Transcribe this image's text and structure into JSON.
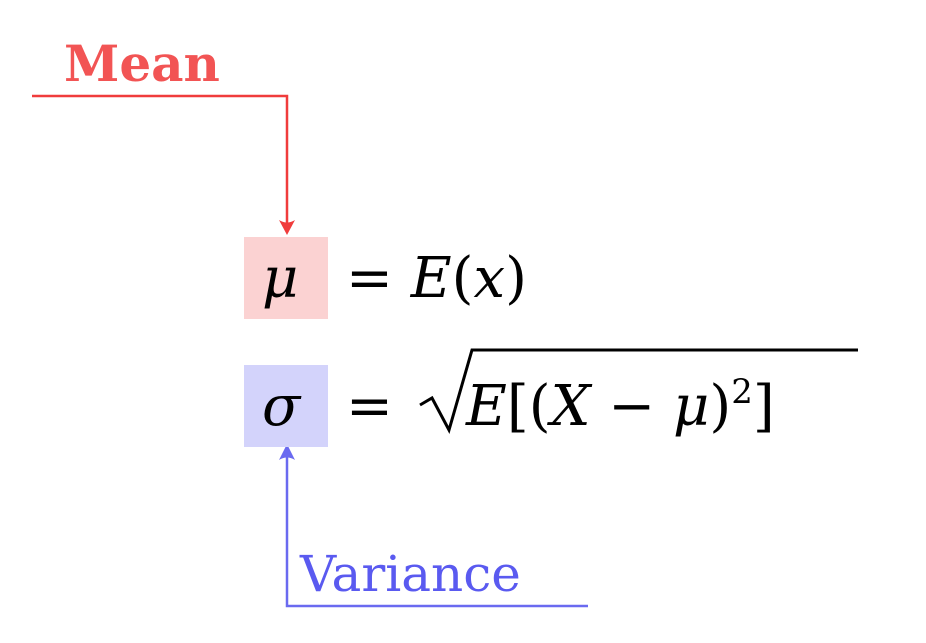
{
  "labels": {
    "mean": "Mean",
    "variance": "Variance"
  },
  "equations": {
    "mean": {
      "symbol": "μ",
      "rhs": [
        "=",
        "E",
        "(",
        "x",
        ")"
      ]
    },
    "std": {
      "symbol": "σ",
      "rhs_eq": "=",
      "radicand": [
        "E",
        "[(",
        "X",
        " − ",
        "μ",
        ")",
        "2",
        "]"
      ]
    }
  },
  "colors": {
    "mean_accent": "#f25454",
    "mean_highlight": "#fbd2d2",
    "variance_accent": "#5a5af0",
    "variance_highlight": "#d3d3fb"
  }
}
